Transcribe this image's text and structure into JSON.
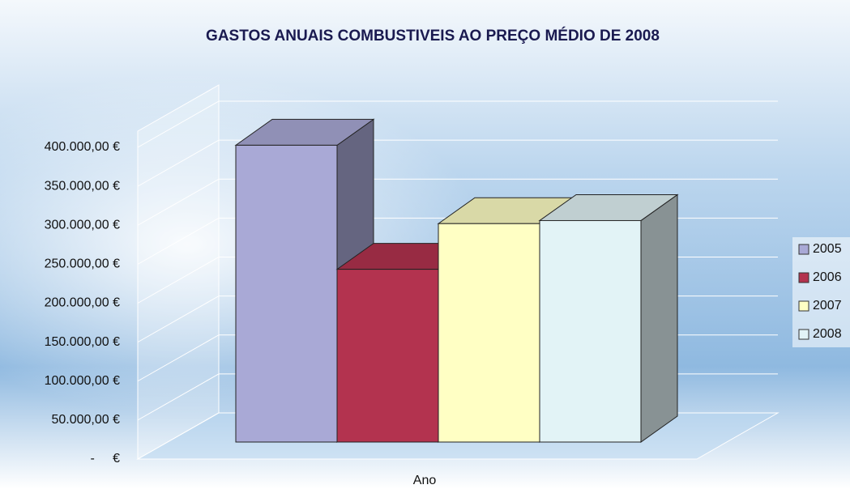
{
  "chart_data": {
    "type": "bar3d",
    "title": "GASTOS ANUAIS COMBUSTIVEIS AO PREÇO MÉDIO DE 2008",
    "x_label": "Ano",
    "categories": [
      "Ano"
    ],
    "series": [
      {
        "name": "2005",
        "color": "#a9a9d6",
        "values": [
          390000
        ]
      },
      {
        "name": "2006",
        "color": "#b3334f",
        "values": [
          227000
        ]
      },
      {
        "name": "2007",
        "color": "#ffffc4",
        "values": [
          287000
        ]
      },
      {
        "name": "2008",
        "color": "#e2f3f6",
        "values": [
          291000
        ]
      }
    ],
    "ylim": [
      0,
      400000
    ],
    "yticks": [
      {
        "value": 0,
        "label": "-     €"
      },
      {
        "value": 50000,
        "label": "50.000,00 €"
      },
      {
        "value": 100000,
        "label": "100.000,00 €"
      },
      {
        "value": 150000,
        "label": "150.000,00 €"
      },
      {
        "value": 200000,
        "label": "200.000,00 €"
      },
      {
        "value": 250000,
        "label": "250.000,00 €"
      },
      {
        "value": 300000,
        "label": "300.000,00 €"
      },
      {
        "value": 350000,
        "label": "350.000,00 €"
      },
      {
        "value": 400000,
        "label": "400.000,00 €"
      }
    ],
    "grid": true,
    "legend": "right"
  }
}
